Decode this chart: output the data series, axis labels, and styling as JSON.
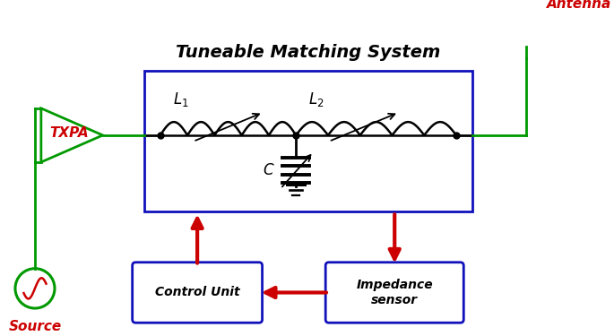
{
  "title": "Tuneable Matching System",
  "title_fontsize": 14,
  "green_color": "#009900",
  "red_color": "#cc0000",
  "blue_color": "#1111bb",
  "black_color": "#000000",
  "bg_color": "#ffffff",
  "txpa_label": "TXPA",
  "source_label": "Source",
  "antenna_label": "Antenna",
  "control_label": "Control Unit",
  "impedance_label": "Impedance\nsensor"
}
